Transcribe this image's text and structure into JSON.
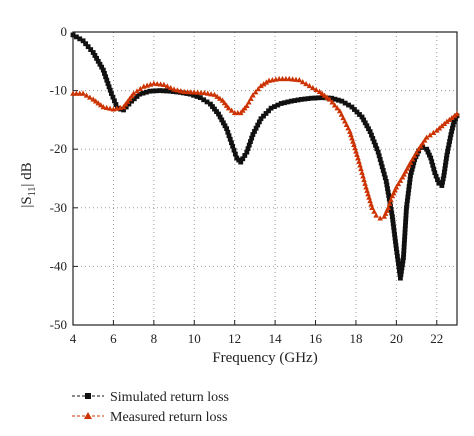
{
  "chart_data": {
    "type": "line",
    "xlabel": "Frequency (GHz)",
    "ylabel_main": "|S",
    "ylabel_sub": "11",
    "ylabel_tail": "| dB",
    "xlim": [
      4,
      23
    ],
    "ylim": [
      -50,
      0
    ],
    "xticks": [
      4,
      6,
      8,
      10,
      12,
      14,
      16,
      18,
      20,
      22
    ],
    "yticks": [
      0,
      -10,
      -20,
      -30,
      -40,
      -50
    ],
    "grid": "dotted",
    "legend_position": "bottom-left",
    "series": [
      {
        "name": "Simulated return loss",
        "color": "#111111",
        "marker": "square",
        "x": [
          4.0,
          4.5,
          5.0,
          5.5,
          5.9,
          6.2,
          6.5,
          6.9,
          7.3,
          7.8,
          8.3,
          8.8,
          9.3,
          9.8,
          10.3,
          10.8,
          11.2,
          11.6,
          11.9,
          12.1,
          12.3,
          12.6,
          12.9,
          13.3,
          13.8,
          14.3,
          14.8,
          15.3,
          15.8,
          16.3,
          16.8,
          17.3,
          17.8,
          18.3,
          18.7,
          19.1,
          19.5,
          19.8,
          20.0,
          20.2,
          20.35,
          20.5,
          20.7,
          20.9,
          21.1,
          21.3,
          21.5,
          21.7,
          21.9,
          22.1,
          22.25,
          22.35,
          22.5,
          22.7,
          22.85,
          23.0
        ],
        "y": [
          -0.5,
          -1.5,
          -3.5,
          -6.5,
          -10.5,
          -13.0,
          -13.3,
          -11.8,
          -10.6,
          -10.1,
          -10.0,
          -10.1,
          -10.3,
          -10.6,
          -11.2,
          -12.3,
          -14.0,
          -16.5,
          -19.5,
          -21.5,
          -22.2,
          -20.5,
          -17.5,
          -14.8,
          -13.0,
          -12.2,
          -11.8,
          -11.5,
          -11.3,
          -11.2,
          -11.3,
          -11.8,
          -12.8,
          -14.5,
          -17.0,
          -20.5,
          -25.5,
          -31.5,
          -37.0,
          -42.0,
          -38.5,
          -30.0,
          -24.5,
          -21.8,
          -20.3,
          -19.7,
          -20.0,
          -21.5,
          -24.0,
          -25.8,
          -26.2,
          -24.5,
          -21.0,
          -17.5,
          -15.3,
          -14.3
        ]
      },
      {
        "name": "Measured return loss",
        "color": "#cc3300",
        "marker": "triangle",
        "x": [
          4.0,
          4.5,
          5.0,
          5.5,
          6.0,
          6.5,
          7.0,
          7.5,
          8.0,
          8.5,
          9.0,
          9.5,
          10.0,
          10.5,
          11.0,
          11.4,
          11.7,
          12.0,
          12.3,
          12.6,
          12.9,
          13.3,
          13.7,
          14.2,
          14.7,
          15.2,
          15.7,
          16.2,
          16.7,
          17.2,
          17.7,
          18.1,
          18.5,
          18.8,
          19.0,
          19.2,
          19.4,
          19.6,
          19.8,
          20.0,
          20.3,
          20.7,
          21.1,
          21.5,
          22.0,
          22.5,
          23.0
        ],
        "y": [
          -10.5,
          -10.5,
          -11.5,
          -12.8,
          -13.2,
          -12.8,
          -10.5,
          -9.3,
          -8.8,
          -9.0,
          -9.8,
          -10.2,
          -10.3,
          -10.4,
          -10.7,
          -11.7,
          -13.0,
          -13.8,
          -13.8,
          -12.6,
          -10.8,
          -9.2,
          -8.3,
          -8.0,
          -8.0,
          -8.2,
          -9.2,
          -10.2,
          -11.5,
          -13.5,
          -17.0,
          -21.5,
          -26.5,
          -30.0,
          -31.3,
          -31.8,
          -31.5,
          -30.0,
          -28.0,
          -26.5,
          -24.8,
          -22.3,
          -20.0,
          -18.0,
          -16.8,
          -15.3,
          -14.0
        ]
      }
    ]
  }
}
